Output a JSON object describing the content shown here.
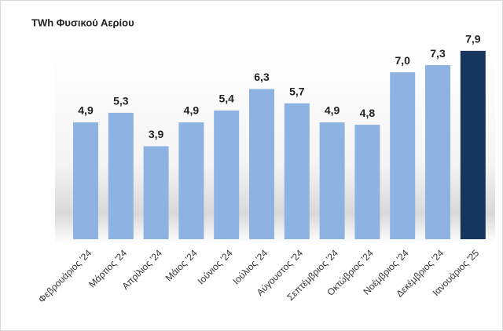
{
  "chart_data": {
    "type": "bar",
    "title": "TWh Φυσικού Αερίου",
    "categories": [
      "Φεβρουάριος '24",
      "Μάρτιος '24",
      "Απρίλιος '24",
      "Μάιος '24",
      "Ιούνιος '24",
      "Ιούλιος '24",
      "Αύγουστος '24",
      "Σεπτέμβριος '24",
      "Οκτώβριος '24",
      "Νοέμβριος '24",
      "Δεκέμβριος '24",
      "Ιανουάριος '25"
    ],
    "values": [
      4.9,
      5.3,
      3.9,
      4.9,
      5.4,
      6.3,
      5.7,
      4.9,
      4.8,
      7.0,
      7.3,
      7.9
    ],
    "value_labels": [
      "4,9",
      "5,3",
      "3,9",
      "4,9",
      "5,4",
      "6,3",
      "5,7",
      "4,9",
      "4,8",
      "7,0",
      "7,3",
      "7,9"
    ],
    "colors": [
      "#8db3e2",
      "#8db3e2",
      "#8db3e2",
      "#8db3e2",
      "#8db3e2",
      "#8db3e2",
      "#8db3e2",
      "#8db3e2",
      "#8db3e2",
      "#8db3e2",
      "#8db3e2",
      "#17365d"
    ]
  }
}
